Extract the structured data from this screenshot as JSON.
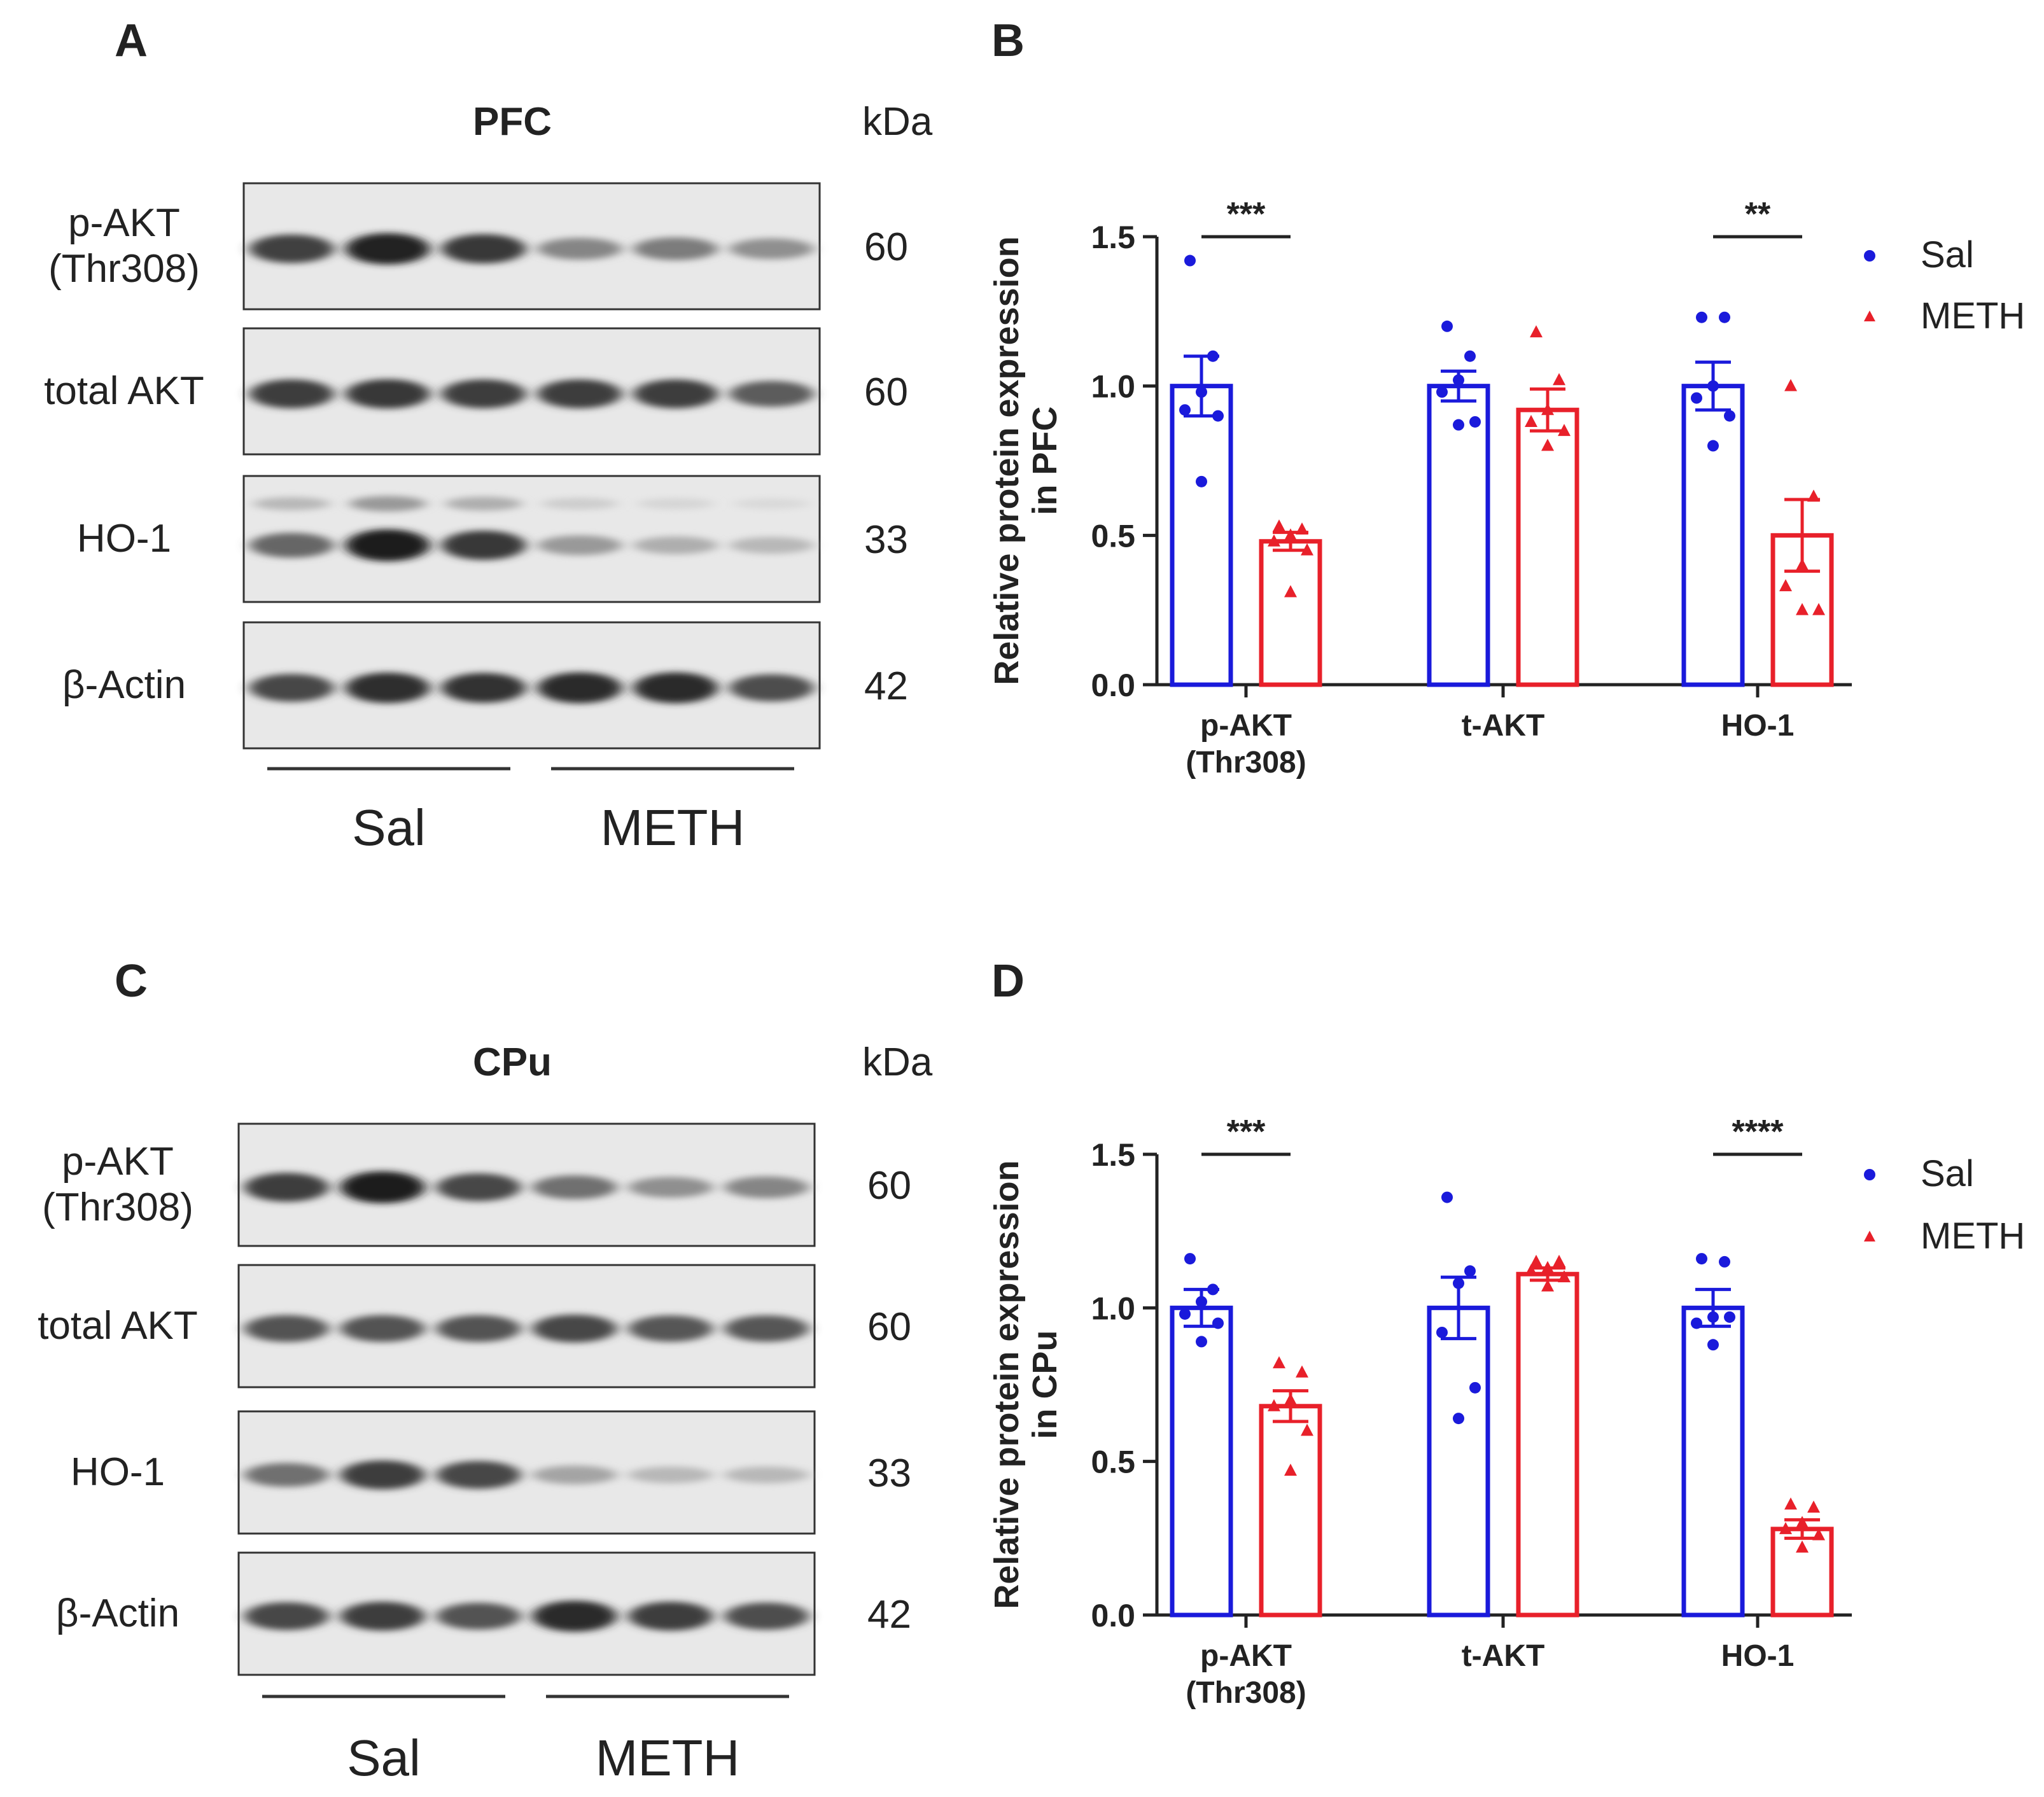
{
  "panels": [
    {
      "id": "A",
      "letter": "A",
      "type": "blot",
      "region": "PFC",
      "kda_label": "kDa",
      "group_labels": [
        "Sal",
        "METH"
      ],
      "rows": [
        {
          "label_lines": [
            "p-AKT",
            "(Thr308)"
          ],
          "kda": "60",
          "intensity": [
            0.78,
            0.92,
            0.82,
            0.45,
            0.5,
            0.4
          ],
          "second_band": null
        },
        {
          "label_lines": [
            "total AKT"
          ],
          "kda": "60",
          "intensity": [
            0.8,
            0.82,
            0.8,
            0.8,
            0.8,
            0.65
          ],
          "second_band": null
        },
        {
          "label_lines": [
            "HO-1"
          ],
          "kda": "33",
          "intensity": [
            0.6,
            0.95,
            0.82,
            0.35,
            0.25,
            0.2
          ],
          "second_band": [
            0.2,
            0.35,
            0.25,
            0.1,
            0.06,
            0.04
          ]
        },
        {
          "label_lines": [
            "β-Actin"
          ],
          "kda": "42",
          "intensity": [
            0.75,
            0.88,
            0.85,
            0.9,
            0.9,
            0.72
          ],
          "second_band": null
        }
      ]
    },
    {
      "id": "C",
      "letter": "C",
      "type": "blot",
      "region": "CPu",
      "kda_label": "kDa",
      "group_labels": [
        "Sal",
        "METH"
      ],
      "rows": [
        {
          "label_lines": [
            "p-AKT",
            "(Thr308)"
          ],
          "kda": "60",
          "intensity": [
            0.8,
            0.95,
            0.75,
            0.55,
            0.4,
            0.45
          ],
          "second_band": null
        },
        {
          "label_lines": [
            "total AKT"
          ],
          "kda": "60",
          "intensity": [
            0.7,
            0.7,
            0.7,
            0.75,
            0.68,
            0.68
          ],
          "second_band": null
        },
        {
          "label_lines": [
            "HO-1"
          ],
          "kda": "33",
          "intensity": [
            0.55,
            0.8,
            0.75,
            0.3,
            0.2,
            0.2
          ],
          "second_band": null
        },
        {
          "label_lines": [
            "β-Actin"
          ],
          "kda": "42",
          "intensity": [
            0.75,
            0.8,
            0.7,
            0.9,
            0.8,
            0.72
          ],
          "second_band": null
        }
      ]
    }
  ],
  "legend": {
    "sal": "Sal",
    "meth": "METH"
  },
  "colors": {
    "sal": "#1a1adb",
    "meth": "#e8202a",
    "axis": "#222222"
  },
  "chart_data": [
    {
      "id": "B",
      "letter": "B",
      "type": "bar",
      "ylabel_lines": [
        "Relative protein expression",
        "in PFC"
      ],
      "ylim": [
        0,
        1.5
      ],
      "yticks": [
        "0.0",
        "0.5",
        "1.0",
        "1.5"
      ],
      "categories": [
        [
          "p-AKT",
          "(Thr308)"
        ],
        [
          "t-AKT"
        ],
        [
          "HO-1"
        ]
      ],
      "legend_position": "top-right",
      "grid": false,
      "series": [
        {
          "name": "Sal",
          "values": [
            1.0,
            1.0,
            1.0
          ],
          "sem": [
            0.1,
            0.05,
            0.08
          ],
          "points": [
            [
              1.42,
              1.1,
              0.98,
              0.92,
              0.9,
              0.68
            ],
            [
              1.2,
              1.1,
              1.02,
              0.98,
              0.88,
              0.87
            ],
            [
              1.23,
              1.23,
              1.0,
              0.96,
              0.9,
              0.8
            ]
          ]
        },
        {
          "name": "METH",
          "values": [
            0.48,
            0.92,
            0.5
          ],
          "sem": [
            0.03,
            0.07,
            0.12
          ],
          "points": [
            [
              0.53,
              0.52,
              0.5,
              0.48,
              0.45,
              0.31
            ],
            [
              1.18,
              1.02,
              0.92,
              0.88,
              0.85,
              0.8
            ],
            [
              1.0,
              0.63,
              0.4,
              0.33,
              0.25,
              0.25
            ]
          ]
        }
      ],
      "significance": [
        {
          "category": 0,
          "label": "***"
        },
        {
          "category": 2,
          "label": "**"
        }
      ]
    },
    {
      "id": "D",
      "letter": "D",
      "type": "bar",
      "ylabel_lines": [
        "Relative protein expression",
        "in CPu"
      ],
      "ylim": [
        0,
        1.5
      ],
      "yticks": [
        "0.0",
        "0.5",
        "1.0",
        "1.5"
      ],
      "categories": [
        [
          "p-AKT",
          "(Thr308)"
        ],
        [
          "t-AKT"
        ],
        [
          "HO-1"
        ]
      ],
      "legend_position": "top-right",
      "grid": false,
      "series": [
        {
          "name": "Sal",
          "values": [
            1.0,
            1.0,
            1.0
          ],
          "sem": [
            0.06,
            0.1,
            0.06
          ],
          "points": [
            [
              1.16,
              1.06,
              1.02,
              0.98,
              0.95,
              0.89
            ],
            [
              1.36,
              1.12,
              1.08,
              0.92,
              0.74,
              0.64
            ],
            [
              1.16,
              1.15,
              0.97,
              0.95,
              0.97,
              0.88
            ]
          ]
        },
        {
          "name": "METH",
          "values": [
            0.68,
            1.11,
            0.28
          ],
          "sem": [
            0.05,
            0.02,
            0.03
          ],
          "points": [
            [
              0.82,
              0.79,
              0.7,
              0.68,
              0.6,
              0.47
            ],
            [
              1.15,
              1.15,
              1.13,
              1.12,
              1.1,
              1.07
            ],
            [
              0.36,
              0.35,
              0.3,
              0.28,
              0.26,
              0.22
            ]
          ]
        }
      ],
      "significance": [
        {
          "category": 0,
          "label": "***"
        },
        {
          "category": 2,
          "label": "****"
        }
      ]
    }
  ]
}
